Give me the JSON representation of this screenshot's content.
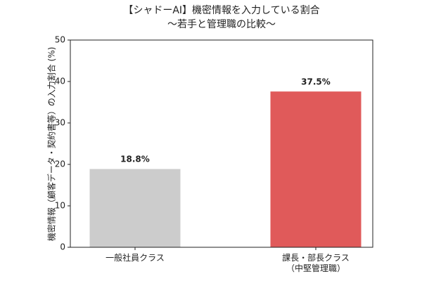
{
  "chart_data": {
    "type": "bar",
    "title": "【シャドーAI】機密情報を入力している割合",
    "subtitle": "〜若手と管理職の比較〜",
    "y_label": "機密情報（顧客データ・契約書等）の入力割合 (%)",
    "categories": [
      "一般社員クラス",
      "課長・部長クラス\n（中堅管理職）"
    ],
    "values": [
      18.8,
      37.5
    ],
    "value_labels": [
      "18.8%",
      "37.5%"
    ],
    "colors": [
      "#cccccc",
      "#e05a5a"
    ],
    "ylim": [
      0,
      50
    ],
    "yticks": [
      0,
      10,
      20,
      30,
      40,
      50
    ],
    "grid": false
  }
}
